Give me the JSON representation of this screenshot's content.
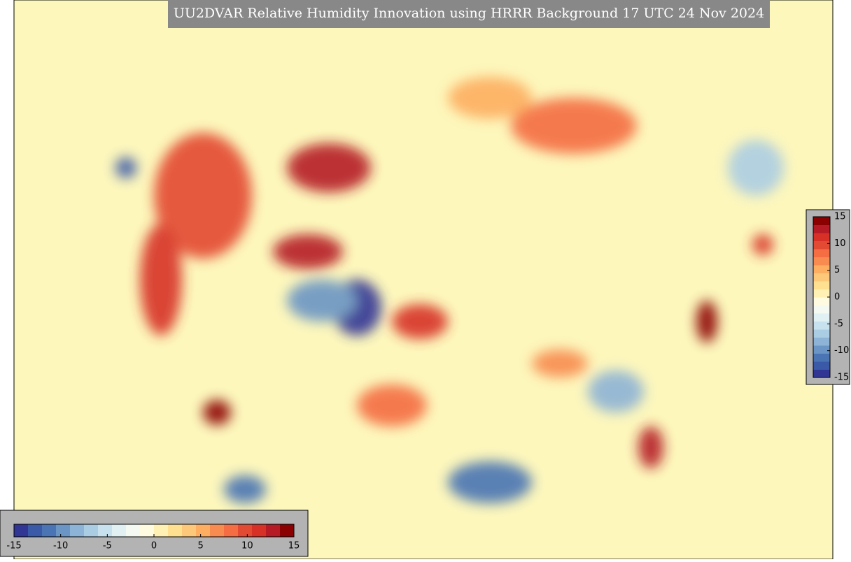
{
  "title": "UU2DVAR Relative Humidity Innovation using HRRR Background 17 UTC 24 Nov 2024",
  "colors": [
    "#313695",
    "#3a5aa8",
    "#4a74b4",
    "#6a95c5",
    "#8db3d6",
    "#abcde3",
    "#c8e1ee",
    "#e0f0f3",
    "#f4f9f1",
    "#fffbe0",
    "#fff0b3",
    "#fee090",
    "#fdc87a",
    "#fdae61",
    "#f88b50",
    "#f46d43",
    "#e34a33",
    "#d73027",
    "#b51a25",
    "#8b0000"
  ],
  "colorbars": [
    {
      "orientation": "horizontal",
      "lim": [
        -15,
        15
      ],
      "ticks": [
        -15,
        -10,
        -5,
        0,
        5,
        10,
        15
      ]
    },
    {
      "orientation": "vertical",
      "lim": [
        -15,
        15
      ],
      "ticks": [
        15,
        10,
        5,
        0,
        -5,
        -10,
        -15
      ]
    }
  ]
}
